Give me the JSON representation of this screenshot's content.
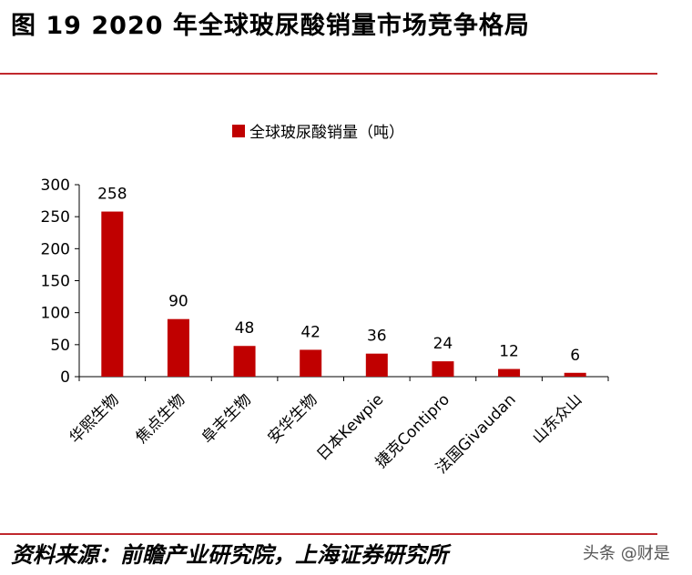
{
  "figure": {
    "title": "图 19  2020 年全球玻尿酸销量市场竞争格局",
    "source": "资料来源：前瞻产业研究院，上海证券研究所",
    "watermark": "头条 @财是"
  },
  "colors": {
    "bar": "#c00000",
    "rule": "#c0282d"
  },
  "chart_data": {
    "type": "bar",
    "categories": [
      "华熙生物",
      "焦点生物",
      "阜丰生物",
      "安华生物",
      "日本Kewpie",
      "捷克Contipro",
      "法国Givaudan",
      "山东众山"
    ],
    "series": [
      {
        "name": "全球玻尿酸销量（吨）",
        "values": [
          258,
          90,
          48,
          42,
          36,
          24,
          12,
          6
        ]
      }
    ],
    "data_labels": [
      "258",
      "90",
      "48",
      "42",
      "36",
      "24",
      "12",
      "6"
    ],
    "y_ticks": [
      "300",
      "250",
      "200",
      "150",
      "100",
      "50",
      "0"
    ],
    "ylim": [
      0,
      300
    ],
    "grid": false,
    "legend_position": "top-center"
  }
}
